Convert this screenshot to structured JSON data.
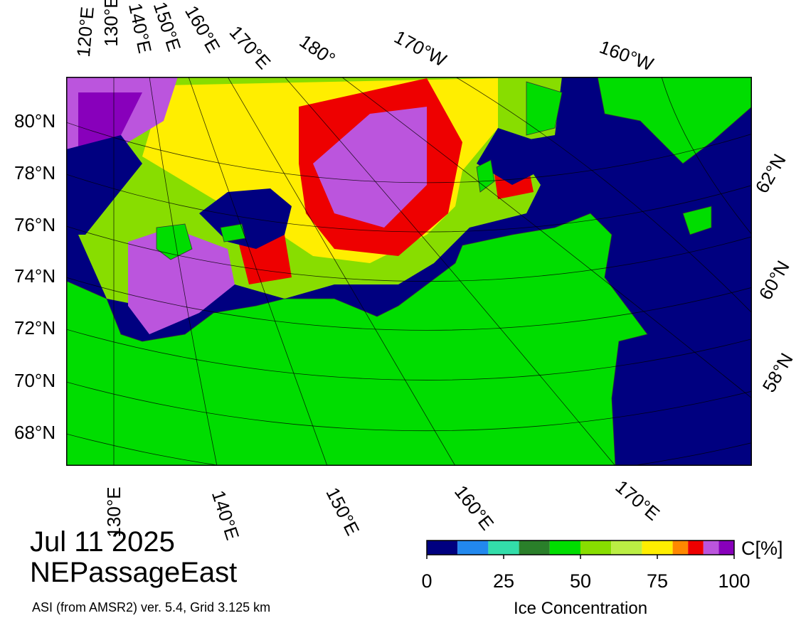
{
  "map": {
    "lat_labels_left": [
      "80°N",
      "78°N",
      "76°N",
      "74°N",
      "72°N",
      "70°N",
      "68°N"
    ],
    "lat_labels_right": [
      "62°N",
      "60°N",
      "58°N"
    ],
    "lon_labels_top": [
      "120°E",
      "130°E",
      "140°E",
      "150°E",
      "160°E",
      "170°E",
      "180°",
      "170°W",
      "160°W"
    ],
    "lon_labels_bottom": [
      "130°E",
      "140°E",
      "150°E",
      "160°E",
      "170°E"
    ]
  },
  "date": "Jul 11 2025",
  "region": "NEPassageEast",
  "credit": "ASI (from AMSR2) ver. 5.4,  Grid 3.125 km",
  "colorbar": {
    "label": "Ice Concentration",
    "unit": "C[%]",
    "lim": [
      0,
      100
    ],
    "ticks": [
      0,
      25,
      50,
      75,
      100
    ],
    "bins": [
      0,
      10,
      20,
      30,
      40,
      50,
      60,
      70,
      80,
      85,
      90,
      95,
      100
    ],
    "colors": [
      "#000080",
      "#2288ee",
      "#33ddaa",
      "#2a7f2a",
      "#00dd00",
      "#88dd00",
      "#bbee44",
      "#ffee00",
      "#ff8800",
      "#ee0000",
      "#bb55dd",
      "#8800bb"
    ]
  }
}
